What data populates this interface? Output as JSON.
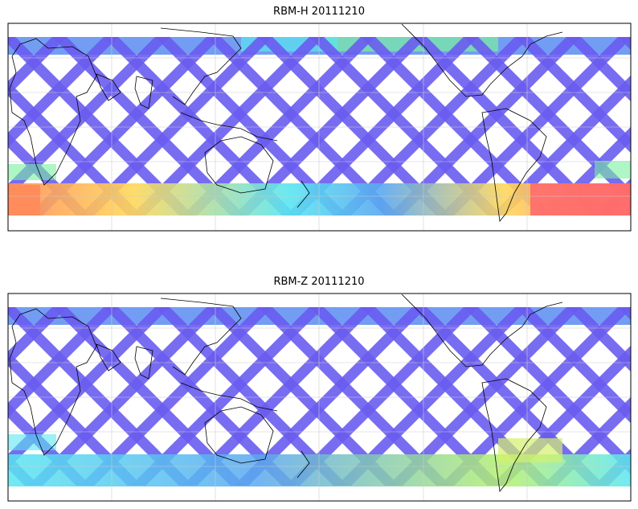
{
  "panels": [
    {
      "title": "RBM-H 20111210",
      "colormap": "jet",
      "hot_regions": [
        "southern-ocean-atlantic",
        "southern-ocean-indian",
        "north-pacific-band"
      ]
    },
    {
      "title": "RBM-Z 20111210",
      "colormap": "jet",
      "hot_regions": [
        "south-atlantic-patch"
      ]
    }
  ],
  "map": {
    "projection": "equirectangular",
    "coastline_color": "#000000",
    "gridline_color": "#cccccc",
    "track_color_low": "#6a5cf0",
    "track_color_mid": "#5aa8f0",
    "track_color_hot": "#ff6b6b"
  }
}
